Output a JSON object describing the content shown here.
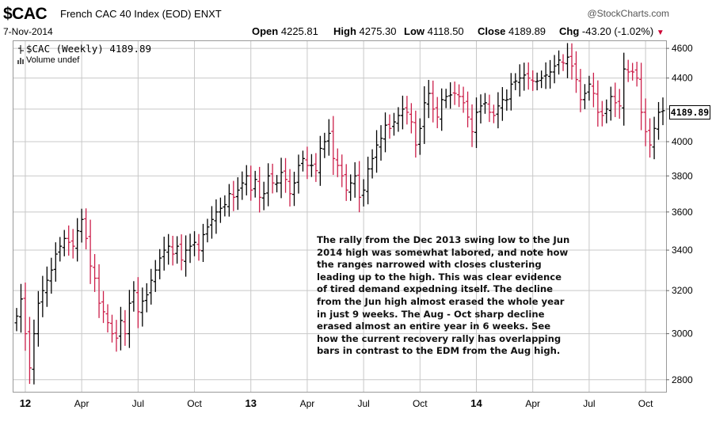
{
  "header": {
    "symbol": "$CAC",
    "title": "French CAC 40 Index (EOD)  ENXT",
    "brand": "@StockCharts.com",
    "date": "7-Nov-2014",
    "open_label": "Open",
    "open": "4225.81",
    "high_label": "High",
    "high": "4275.30",
    "low_label": "Low",
    "low": "4118.50",
    "close_label": "Close",
    "close": "4189.89",
    "chg_label": "Chg",
    "chg": "-43.20 (-1.02%)",
    "chg_arrow": "▼"
  },
  "legend": {
    "line1": "$CAC (Weekly) 4189.89",
    "line2": "Volume undef"
  },
  "price_tag": "4189.89",
  "annotation": "The rally from the Dec 2013 swing low to the Jun 2014 high was somewhat labored, and note how the ranges narrowed with closes clustering leading up to the high.  This was clear evidence of tired demand expedning itself.  The decline from the Jun high almost erased the whole year in just 9 weeks.  The Aug - Oct sharp decline erased almost an entire year in 6 weeks.  See how the current recovery rally has overlapping bars in contrast to the EDM from the Aug high.",
  "colors": {
    "up": "#000000",
    "down": "#cc1f4a",
    "grid": "#c8c8c8",
    "frame": "#999999"
  },
  "chart_data": {
    "type": "ohlc",
    "title": "",
    "xlabel": "",
    "ylabel": "",
    "ylim": [
      2750,
      4650
    ],
    "yscale": "log",
    "y_ticks": [
      2800,
      3000,
      3200,
      3400,
      3600,
      3800,
      4000,
      4200,
      4400,
      4600
    ],
    "x_ticks": [
      {
        "label": "12",
        "week": 2,
        "year": true
      },
      {
        "label": "Apr",
        "week": 15
      },
      {
        "label": "Jul",
        "week": 28
      },
      {
        "label": "Oct",
        "week": 41
      },
      {
        "label": "13",
        "week": 54,
        "year": true
      },
      {
        "label": "Apr",
        "week": 67
      },
      {
        "label": "Jul",
        "week": 80
      },
      {
        "label": "Oct",
        "week": 93
      },
      {
        "label": "14",
        "week": 106,
        "year": true
      },
      {
        "label": "Apr",
        "week": 119
      },
      {
        "label": "Jul",
        "week": 132
      },
      {
        "label": "Oct",
        "week": 145
      }
    ],
    "week_count": 150,
    "closes": [
      3080,
      3160,
      3000,
      2850,
      3000,
      3140,
      3200,
      3250,
      3300,
      3380,
      3420,
      3460,
      3440,
      3420,
      3500,
      3560,
      3460,
      3320,
      3260,
      3140,
      3100,
      3050,
      3000,
      2980,
      3060,
      3000,
      3140,
      3200,
      3100,
      3150,
      3180,
      3250,
      3300,
      3360,
      3400,
      3420,
      3380,
      3420,
      3350,
      3400,
      3420,
      3440,
      3400,
      3480,
      3520,
      3560,
      3600,
      3620,
      3640,
      3700,
      3680,
      3720,
      3760,
      3800,
      3720,
      3780,
      3680,
      3700,
      3800,
      3760,
      3760,
      3820,
      3780,
      3700,
      3760,
      3860,
      3900,
      3860,
      3860,
      3830,
      3960,
      4000,
      4050,
      3900,
      3860,
      3800,
      3720,
      3760,
      3800,
      3680,
      3720,
      3840,
      3900,
      3980,
      4020,
      4100,
      4080,
      4120,
      4160,
      4200,
      4180,
      4120,
      3980,
      4080,
      4240,
      4300,
      4200,
      4150,
      4260,
      4280,
      4290,
      4300,
      4280,
      4240,
      4150,
      4060,
      4180,
      4220,
      4240,
      4180,
      4160,
      4220,
      4260,
      4260,
      4360,
      4380,
      4400,
      4420,
      4400,
      4380,
      4380,
      4400,
      4420,
      4440,
      4480,
      4520,
      4500,
      4540,
      4480,
      4390,
      4260,
      4300,
      4360,
      4300,
      4180,
      4160,
      4200,
      4280,
      4240,
      4220,
      4460,
      4440,
      4440,
      4400,
      4180,
      4060,
      3980,
      4080,
      4180,
      4190
    ]
  }
}
